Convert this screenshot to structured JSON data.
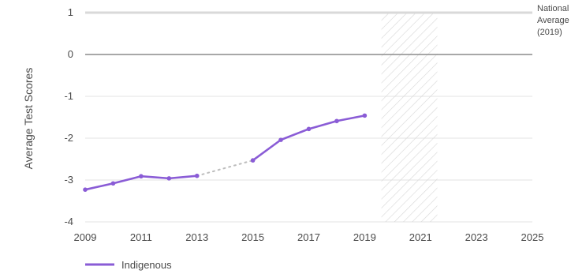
{
  "chart_data": {
    "type": "line",
    "ylabel": "Average Test Scores",
    "xlim": [
      2009,
      2025
    ],
    "ylim": [
      -4,
      1
    ],
    "x_ticks": [
      2009,
      2011,
      2013,
      2015,
      2017,
      2019,
      2021,
      2023,
      2025
    ],
    "y_ticks": [
      1,
      0,
      -1,
      -2,
      -3,
      -4
    ],
    "x_tick_labels": [
      "2009",
      "2011",
      "2013",
      "2015",
      "2017",
      "2019",
      "2021",
      "2023",
      "2025"
    ],
    "y_tick_labels": [
      "1",
      "0",
      "-1",
      "-2",
      "-3",
      "-4"
    ],
    "grid": true,
    "reference_line": {
      "y": 1,
      "label_lines": [
        "National",
        "Average",
        "(2019)"
      ]
    },
    "zero_line": 0,
    "shaded_region": {
      "x_start": 2019.6,
      "x_end": 2021.6,
      "pattern": "diagonal-hatch"
    },
    "series": [
      {
        "name": "Indigenous",
        "color": "#8a5cd6",
        "points": [
          {
            "x": 2009,
            "y": -3.23
          },
          {
            "x": 2010,
            "y": -3.08
          },
          {
            "x": 2011,
            "y": -2.91
          },
          {
            "x": 2012,
            "y": -2.96
          },
          {
            "x": 2013,
            "y": -2.9
          },
          {
            "x": 2015,
            "y": -2.53
          },
          {
            "x": 2016,
            "y": -2.04
          },
          {
            "x": 2017,
            "y": -1.78
          },
          {
            "x": 2018,
            "y": -1.59
          },
          {
            "x": 2019,
            "y": -1.46
          }
        ],
        "gap": {
          "from": 2013,
          "to": 2015,
          "style": "dotted",
          "color": "#bdbdbd"
        }
      }
    ],
    "legend": {
      "placement": "bottom-left"
    }
  }
}
